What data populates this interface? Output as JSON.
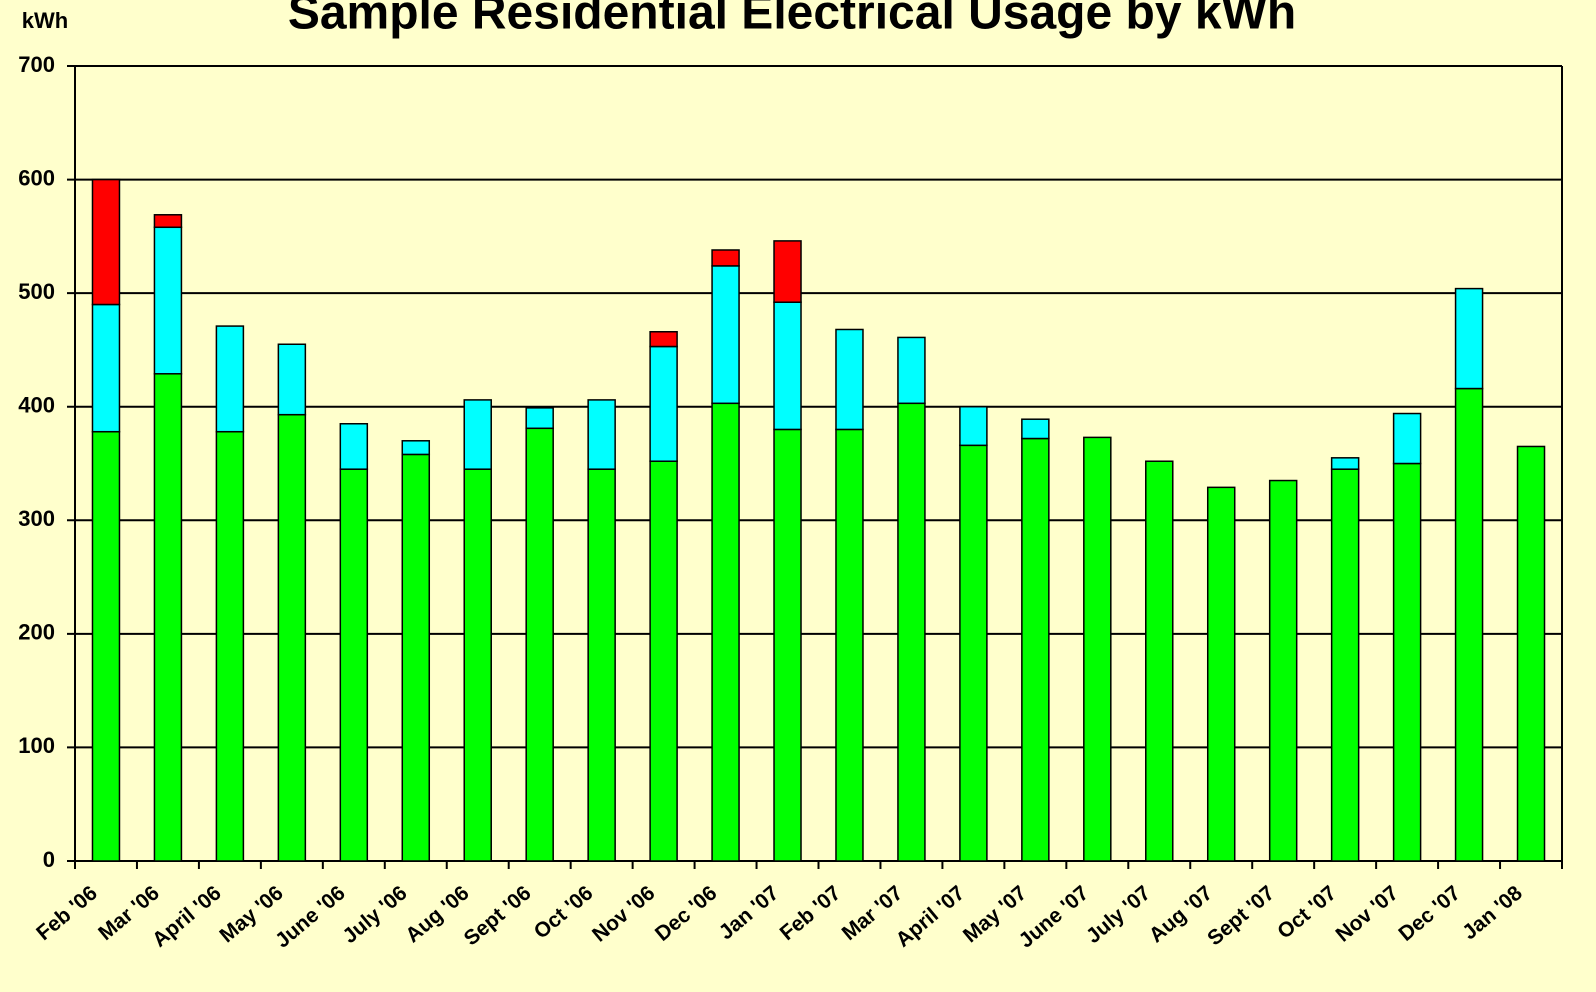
{
  "chart_data": {
    "type": "bar",
    "stacked": true,
    "title": "Sample Residential Electrical Usage by kWh",
    "ylabel": "kWh",
    "categories": [
      "Feb '06",
      "Mar '06",
      "April '06",
      "May '06",
      "June '06",
      "July '06",
      "Aug '06",
      "Sept '06",
      "Oct '06",
      "Nov '06",
      "Dec '06",
      "Jan '07",
      "Feb '07",
      "Mar '07",
      "April '07",
      "May '07",
      "June '07",
      "July '07",
      "Aug '07",
      "Sept '07",
      "Oct '07",
      "Nov '07",
      "Dec '07",
      "Jan '08"
    ],
    "series": [
      {
        "color": "#00ff00",
        "values": [
          378,
          429,
          378,
          393,
          345,
          358,
          345,
          381,
          345,
          352,
          403,
          380,
          380,
          403,
          366,
          372,
          373,
          352,
          329,
          335,
          345,
          350,
          416,
          365
        ]
      },
      {
        "color": "#00ffff",
        "values": [
          112,
          129,
          93,
          62,
          40,
          12,
          61,
          18,
          61,
          101,
          121,
          112,
          88,
          58,
          34,
          17,
          0,
          0,
          0,
          0,
          10,
          44,
          88,
          0
        ]
      },
      {
        "color": "#ff0000",
        "values": [
          110,
          11,
          0,
          0,
          0,
          0,
          0,
          0,
          0,
          13,
          14,
          54,
          0,
          0,
          0,
          0,
          0,
          0,
          0,
          0,
          0,
          0,
          0,
          0
        ]
      }
    ],
    "ylim": [
      0,
      700
    ],
    "yticks": [
      0,
      100,
      200,
      300,
      400,
      500,
      600,
      700
    ],
    "grid": true
  }
}
